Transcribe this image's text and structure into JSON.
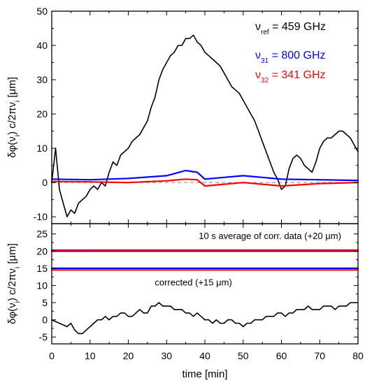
{
  "chart_data": [
    {
      "type": "line",
      "panel": "top",
      "ylabel_parts": [
        "δφ(ν",
        "i",
        ") c/2πν",
        "i",
        " [μm]"
      ],
      "ylim": [
        -12,
        50
      ],
      "yticks": [
        -10,
        0,
        10,
        20,
        30,
        40,
        50
      ],
      "xlim": [
        0,
        80
      ],
      "legend": [
        {
          "symbol": "ν",
          "sub": "ref",
          "text": " = 459 GHz",
          "color": "#000000"
        },
        {
          "symbol": "ν",
          "sub": "31",
          "text": " = 800 GHz",
          "color": "#0000ff"
        },
        {
          "symbol": "ν",
          "sub": "32",
          "text": " = 341 GHz",
          "color": "#ff0000"
        }
      ],
      "reference_line": 0,
      "series": [
        {
          "color": "#000000",
          "points": [
            [
              0,
              0
            ],
            [
              1,
              10
            ],
            [
              2,
              -2
            ],
            [
              3,
              -6
            ],
            [
              4,
              -10
            ],
            [
              5,
              -8
            ],
            [
              6,
              -9
            ],
            [
              7,
              -6
            ],
            [
              8,
              -5
            ],
            [
              9,
              -4
            ],
            [
              10,
              -2
            ],
            [
              11,
              -1
            ],
            [
              12,
              -2
            ],
            [
              13,
              0
            ],
            [
              14,
              -1
            ],
            [
              15,
              3
            ],
            [
              16,
              6
            ],
            [
              17,
              5
            ],
            [
              18,
              8
            ],
            [
              19,
              9
            ],
            [
              20,
              10
            ],
            [
              21,
              12
            ],
            [
              22,
              13
            ],
            [
              23,
              14
            ],
            [
              24,
              16
            ],
            [
              25,
              18
            ],
            [
              26,
              22
            ],
            [
              27,
              25
            ],
            [
              28,
              30
            ],
            [
              29,
              33
            ],
            [
              30,
              35
            ],
            [
              31,
              37
            ],
            [
              32,
              38
            ],
            [
              33,
              40
            ],
            [
              34,
              40
            ],
            [
              35,
              42
            ],
            [
              36,
              42
            ],
            [
              37,
              43
            ],
            [
              38,
              41
            ],
            [
              39,
              40
            ],
            [
              40,
              38
            ],
            [
              41,
              37
            ],
            [
              42,
              36
            ],
            [
              43,
              35
            ],
            [
              44,
              34
            ],
            [
              45,
              32
            ],
            [
              46,
              30
            ],
            [
              47,
              28
            ],
            [
              48,
              27
            ],
            [
              49,
              26
            ],
            [
              50,
              24
            ],
            [
              51,
              22
            ],
            [
              52,
              20
            ],
            [
              53,
              18
            ],
            [
              54,
              15
            ],
            [
              55,
              12
            ],
            [
              56,
              9
            ],
            [
              57,
              6
            ],
            [
              58,
              3
            ],
            [
              59,
              1
            ],
            [
              60,
              -2
            ],
            [
              61,
              -1
            ],
            [
              62,
              4
            ],
            [
              63,
              7
            ],
            [
              64,
              8
            ],
            [
              65,
              7
            ],
            [
              66,
              5
            ],
            [
              67,
              4
            ],
            [
              68,
              3
            ],
            [
              69,
              6
            ],
            [
              70,
              10
            ],
            [
              71,
              12
            ],
            [
              72,
              13
            ],
            [
              73,
              13
            ],
            [
              74,
              14
            ],
            [
              75,
              15
            ],
            [
              76,
              15
            ],
            [
              77,
              14
            ],
            [
              78,
              13
            ],
            [
              79,
              11
            ],
            [
              80,
              9
            ]
          ]
        },
        {
          "color": "#0000ff",
          "points": [
            [
              0,
              1
            ],
            [
              10,
              0.8
            ],
            [
              20,
              1.2
            ],
            [
              30,
              2
            ],
            [
              35,
              3.5
            ],
            [
              38,
              3
            ],
            [
              40,
              1
            ],
            [
              45,
              1.5
            ],
            [
              50,
              2
            ],
            [
              55,
              1.5
            ],
            [
              60,
              1
            ],
            [
              70,
              0.8
            ],
            [
              80,
              0.6
            ]
          ]
        },
        {
          "color": "#ff0000",
          "points": [
            [
              0,
              0.3
            ],
            [
              10,
              0.2
            ],
            [
              20,
              0
            ],
            [
              30,
              0.5
            ],
            [
              35,
              1
            ],
            [
              38,
              0.8
            ],
            [
              40,
              -1
            ],
            [
              45,
              -0.5
            ],
            [
              50,
              0
            ],
            [
              55,
              -0.5
            ],
            [
              60,
              -1
            ],
            [
              70,
              -0.3
            ],
            [
              80,
              0
            ]
          ]
        }
      ]
    },
    {
      "type": "line",
      "panel": "bottom",
      "ylabel_parts": [
        "δφ(ν",
        "i",
        ") c/2πν",
        "i",
        " [μm]"
      ],
      "ylim": [
        -7,
        28
      ],
      "yticks": [
        -5,
        0,
        5,
        10,
        15,
        20,
        25
      ],
      "xlim": [
        0,
        80
      ],
      "xticks": [
        0,
        10,
        20,
        30,
        40,
        50,
        60,
        70,
        80
      ],
      "xlabel": "time [min]",
      "annotations": [
        {
          "text_parts": [
            "10 s average of corr. data (+20 ",
            "μ",
            "m)"
          ],
          "x": 57,
          "y": 23.5
        },
        {
          "text_parts": [
            "corrected (+15 ",
            "μ",
            "m)"
          ],
          "x": 37,
          "y": 10
        }
      ],
      "reference_lines": [
        15,
        20
      ],
      "series": [
        {
          "color": "#000000",
          "points": [
            [
              0,
              0
            ],
            [
              2,
              -1
            ],
            [
              4,
              -2
            ],
            [
              5,
              -1
            ],
            [
              6,
              -3
            ],
            [
              7,
              -4
            ],
            [
              8,
              -4
            ],
            [
              9,
              -3
            ],
            [
              10,
              -2
            ],
            [
              11,
              -1
            ],
            [
              12,
              0
            ],
            [
              13,
              0
            ],
            [
              14,
              1
            ],
            [
              15,
              0
            ],
            [
              16,
              1
            ],
            [
              17,
              1
            ],
            [
              18,
              2
            ],
            [
              19,
              2
            ],
            [
              20,
              1
            ],
            [
              21,
              1
            ],
            [
              22,
              2
            ],
            [
              23,
              3
            ],
            [
              24,
              2
            ],
            [
              25,
              2
            ],
            [
              26,
              4
            ],
            [
              27,
              4
            ],
            [
              28,
              5
            ],
            [
              29,
              4
            ],
            [
              30,
              4
            ],
            [
              31,
              4
            ],
            [
              32,
              3
            ],
            [
              33,
              3
            ],
            [
              34,
              3
            ],
            [
              35,
              2
            ],
            [
              36,
              2
            ],
            [
              37,
              1
            ],
            [
              38,
              2
            ],
            [
              39,
              1
            ],
            [
              40,
              0
            ],
            [
              41,
              0
            ],
            [
              42,
              -1
            ],
            [
              43,
              0
            ],
            [
              44,
              -1
            ],
            [
              45,
              -1
            ],
            [
              46,
              0
            ],
            [
              47,
              0
            ],
            [
              48,
              -1
            ],
            [
              49,
              -1
            ],
            [
              50,
              -2
            ],
            [
              51,
              -1
            ],
            [
              52,
              -1
            ],
            [
              53,
              0
            ],
            [
              54,
              0
            ],
            [
              55,
              0
            ],
            [
              56,
              1
            ],
            [
              57,
              1
            ],
            [
              58,
              1
            ],
            [
              59,
              2
            ],
            [
              60,
              2
            ],
            [
              61,
              1
            ],
            [
              62,
              2
            ],
            [
              63,
              2
            ],
            [
              64,
              3
            ],
            [
              65,
              3
            ],
            [
              66,
              3
            ],
            [
              67,
              4
            ],
            [
              68,
              3
            ],
            [
              69,
              3
            ],
            [
              70,
              3
            ],
            [
              71,
              4
            ],
            [
              72,
              4
            ],
            [
              73,
              4
            ],
            [
              74,
              3
            ],
            [
              75,
              4
            ],
            [
              76,
              4
            ],
            [
              77,
              4
            ],
            [
              78,
              5
            ],
            [
              79,
              5
            ],
            [
              80,
              5
            ]
          ]
        },
        {
          "color": "#0000ff",
          "points": [
            [
              0,
              15
            ],
            [
              80,
              15
            ]
          ]
        },
        {
          "color": "#ff0000",
          "points": [
            [
              0,
              14.5
            ],
            [
              80,
              14.5
            ]
          ]
        },
        {
          "color": "#0000ff",
          "points": [
            [
              0,
              20
            ],
            [
              80,
              20
            ]
          ]
        },
        {
          "color": "#ff0000",
          "points": [
            [
              0,
              20.3
            ],
            [
              80,
              20.3
            ]
          ]
        }
      ]
    }
  ]
}
